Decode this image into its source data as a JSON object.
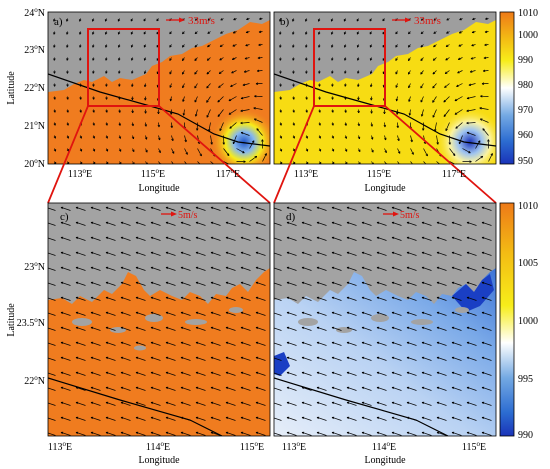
{
  "top_row": {
    "y_label": "Latitude",
    "x_label": "Longitude",
    "lat_ticks": [
      {
        "deg": "24",
        "hem": "N"
      },
      {
        "deg": "23",
        "hem": "N"
      },
      {
        "deg": "22",
        "hem": "N"
      },
      {
        "deg": "21",
        "hem": "N"
      },
      {
        "deg": "20",
        "hem": "N"
      }
    ],
    "lon_ticks": [
      {
        "deg": "113",
        "hem": "E"
      },
      {
        "deg": "115",
        "hem": "E"
      },
      {
        "deg": "117",
        "hem": "E"
      }
    ],
    "scale_label": "33m/s",
    "colorbar": {
      "ticks": [
        "1010",
        "1000",
        "990",
        "980",
        "970",
        "960",
        "950"
      ],
      "colors": [
        "#ee7a18",
        "#f3bd14",
        "#f7ed1a",
        "#ffffff",
        "#74a9e3",
        "#2c6cd1",
        "#1a33b8"
      ]
    },
    "panels": [
      {
        "label": "a)",
        "land_color": "#9e9e9e",
        "sea_color": "#f07c1f"
      },
      {
        "label": "b)",
        "land_color": "#9e9e9e",
        "sea_color": "#f7dc13"
      }
    ]
  },
  "bottom_row": {
    "y_label": "Latitude",
    "x_label": "Longitude",
    "lat_ticks": [
      {
        "deg": "23",
        "hem": "N"
      },
      {
        "deg": "23.5",
        "hem": "N"
      },
      {
        "deg": "22",
        "hem": "N"
      }
    ],
    "lon_ticks": [
      {
        "deg": "113",
        "hem": "E"
      },
      {
        "deg": "114",
        "hem": "E"
      },
      {
        "deg": "115",
        "hem": "E"
      }
    ],
    "scale_label": "5m/s",
    "colorbar": {
      "ticks": [
        "1010",
        "1005",
        "1000",
        "995",
        "990"
      ],
      "colors": [
        "#ee7a18",
        "#f3bd14",
        "#f7ed1a",
        "#ffffff",
        "#74a9e3",
        "#2c6cd1",
        "#1a33b8"
      ]
    },
    "panels": [
      {
        "label": "c)",
        "land_color": "#a3a3a3",
        "sea_color": "#f07c1f"
      },
      {
        "label": "d)",
        "land_color": "#a3a3a3",
        "sea_color": "#a9c8f0"
      }
    ]
  },
  "colors": {
    "frame": "#000000",
    "zoom_box": "#e0140f",
    "wind_arrow": "#000000",
    "scale_arrow": "#e0140f",
    "track_line": "#000000"
  }
}
